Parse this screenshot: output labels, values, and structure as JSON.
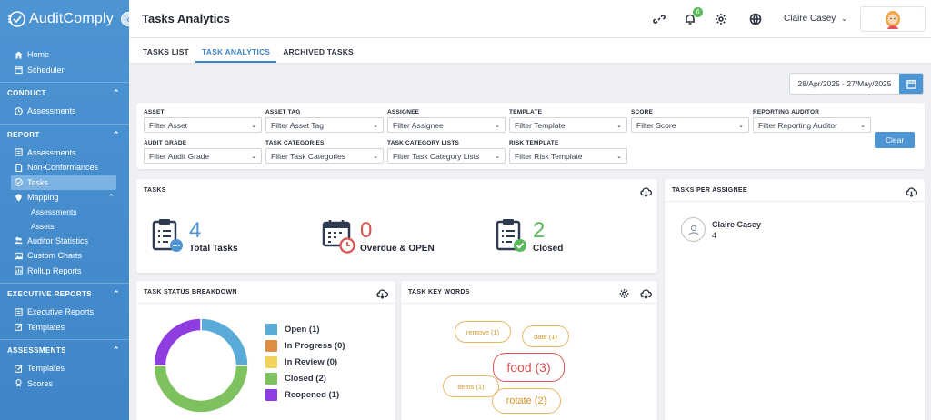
{
  "app": {
    "name": "AuditComply"
  },
  "sidebar": {
    "top_items": [
      {
        "label": "Home",
        "icon": "home-icon"
      },
      {
        "label": "Scheduler",
        "icon": "calendar-icon"
      }
    ],
    "sections": [
      {
        "title": "CONDUCT",
        "items": [
          {
            "label": "Assessments"
          }
        ]
      },
      {
        "title": "REPORT",
        "items": [
          {
            "label": "Assessments"
          },
          {
            "label": "Non-Conformances"
          },
          {
            "label": "Tasks"
          },
          {
            "label": "Mapping"
          },
          {
            "label": "Assessments"
          },
          {
            "label": "Assets"
          },
          {
            "label": "Auditor Statistics"
          },
          {
            "label": "Custom Charts"
          },
          {
            "label": "Rollup Reports"
          }
        ]
      },
      {
        "title": "EXECUTIVE REPORTS",
        "items": [
          {
            "label": "Executive Reports"
          },
          {
            "label": "Templates"
          }
        ]
      },
      {
        "title": "ASSESSMENTS",
        "items": [
          {
            "label": "Templates"
          },
          {
            "label": "Scores"
          }
        ]
      }
    ]
  },
  "header": {
    "title": "Tasks Analytics",
    "notification_count": "6",
    "user_name": "Claire Casey"
  },
  "tabs": [
    {
      "label": "TASKS LIST"
    },
    {
      "label": "TASK ANALYTICS"
    },
    {
      "label": "ARCHIVED TASKS"
    }
  ],
  "date_range": "28/Apr/2025 - 27/May/2025",
  "filters": [
    {
      "label": "ASSET",
      "placeholder": "Filter Asset"
    },
    {
      "label": "ASSET TAG",
      "placeholder": "Filter Asset Tag"
    },
    {
      "label": "ASSIGNEE",
      "placeholder": "Filter Assignee"
    },
    {
      "label": "TEMPLATE",
      "placeholder": "Filter Template"
    },
    {
      "label": "SCORE",
      "placeholder": "Filter Score"
    },
    {
      "label": "REPORTING AUDITOR",
      "placeholder": "Filter Reporting Auditor"
    },
    {
      "label": "AUDIT GRADE",
      "placeholder": "Filter Audit Grade"
    },
    {
      "label": "TASK CATEGORIES",
      "placeholder": "Filter Task Categories"
    },
    {
      "label": "TASK CATEGORY LISTS",
      "placeholder": "Filter Task Category Lists"
    },
    {
      "label": "RISK TEMPLATE",
      "placeholder": "Filter Risk Template"
    }
  ],
  "clear_label": "Clear",
  "tasks_card": {
    "title": "TASKS",
    "stats": [
      {
        "value": "4",
        "label": "Total Tasks",
        "color": "#4d94d3"
      },
      {
        "value": "0",
        "label": "Overdue & OPEN",
        "color": "#d9534f"
      },
      {
        "value": "2",
        "label": "Closed",
        "color": "#5cb85c"
      }
    ]
  },
  "assignee_card": {
    "title": "TASKS PER ASSIGNEE",
    "assignees": [
      {
        "name": "Claire Casey",
        "count": "4"
      }
    ]
  },
  "status_card": {
    "title": "TASK STATUS BREAKDOWN",
    "legend": [
      {
        "label": "Open (1)",
        "color": "#5aaad8"
      },
      {
        "label": "In Progress (0)",
        "color": "#df8c45"
      },
      {
        "label": "In Review (0)",
        "color": "#f2d35a"
      },
      {
        "label": "Closed (2)",
        "color": "#7dc25e"
      },
      {
        "label": "Reopened (1)",
        "color": "#8e3de0"
      }
    ]
  },
  "chart_data": {
    "type": "pie",
    "categories": [
      "Open",
      "In Progress",
      "In Review",
      "Closed",
      "Reopened"
    ],
    "values": [
      1,
      0,
      0,
      2,
      1
    ],
    "colors": [
      "#5aaad8",
      "#df8c45",
      "#f2d35a",
      "#7dc25e",
      "#8e3de0"
    ],
    "donut": true,
    "legend_position": "right"
  },
  "keywords_card": {
    "title": "TASK KEY WORDS",
    "words": [
      {
        "label": "remove (1)"
      },
      {
        "label": "date (1)"
      },
      {
        "label": "food (3)"
      },
      {
        "label": "items (1)"
      },
      {
        "label": "rotate (2)"
      }
    ]
  }
}
